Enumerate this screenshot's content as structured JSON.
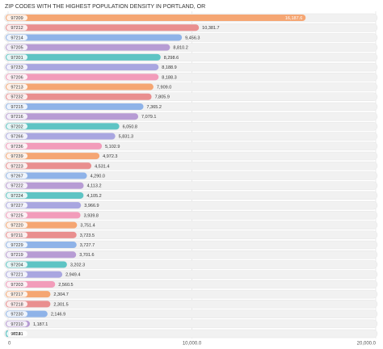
{
  "chart_data": {
    "type": "hbar",
    "title": "ZIP CODES WITH THE HIGHEST POPULATION DENSITY IN PORTLAND, OR",
    "categories": [
      "97209",
      "97212",
      "97214",
      "97205",
      "97201",
      "97233",
      "97206",
      "97213",
      "97232",
      "97215",
      "97216",
      "97202",
      "97266",
      "97236",
      "97239",
      "97223",
      "97267",
      "97222",
      "97224",
      "97227",
      "97225",
      "97220",
      "97211",
      "97229",
      "97219",
      "97204",
      "97221",
      "97203",
      "97217",
      "97218",
      "97230",
      "97210",
      "97231"
    ],
    "values": [
      16187.6,
      10381.7,
      9456.3,
      8810.2,
      8298.6,
      8188.9,
      8188.3,
      7909.0,
      7805.9,
      7365.2,
      7079.1,
      6050.8,
      5831.3,
      5102.9,
      4972.3,
      4531.4,
      4290.0,
      4113.2,
      4105.2,
      3966.9,
      3939.8,
      3751.4,
      3723.5,
      3727.7,
      3701.6,
      3202.3,
      2949.4,
      2560.5,
      2304.7,
      2301.5,
      2146.9,
      1187.1,
      47.4
    ],
    "value_labels": [
      "16,187.6",
      "10,381.7",
      "9,456.3",
      "8,810.2",
      "8,298.6",
      "8,188.9",
      "8,188.3",
      "7,909.0",
      "7,805.9",
      "7,365.2",
      "7,079.1",
      "6,050.8",
      "5,831.3",
      "5,102.9",
      "4,972.3",
      "4,531.4",
      "4,290.0",
      "4,113.2",
      "4,105.2",
      "3,966.9",
      "3,939.8",
      "3,751.4",
      "3,723.5",
      "3,727.7",
      "3,701.6",
      "3,202.3",
      "2,949.4",
      "2,560.5",
      "2,304.7",
      "2,301.5",
      "2,146.9",
      "1,187.1",
      "47.4"
    ],
    "colors": [
      "#f5a673",
      "#e98f8f",
      "#8fb3e8",
      "#b79cd4",
      "#5ec4c4",
      "#a9a6e0",
      "#f29cba"
    ],
    "xlim": [
      0,
      20000
    ],
    "xticks": [
      0,
      {
        "value": 10000,
        "label": "10,000.0"
      },
      {
        "value": 20000,
        "label": "20,000.0"
      }
    ],
    "grid": true
  }
}
